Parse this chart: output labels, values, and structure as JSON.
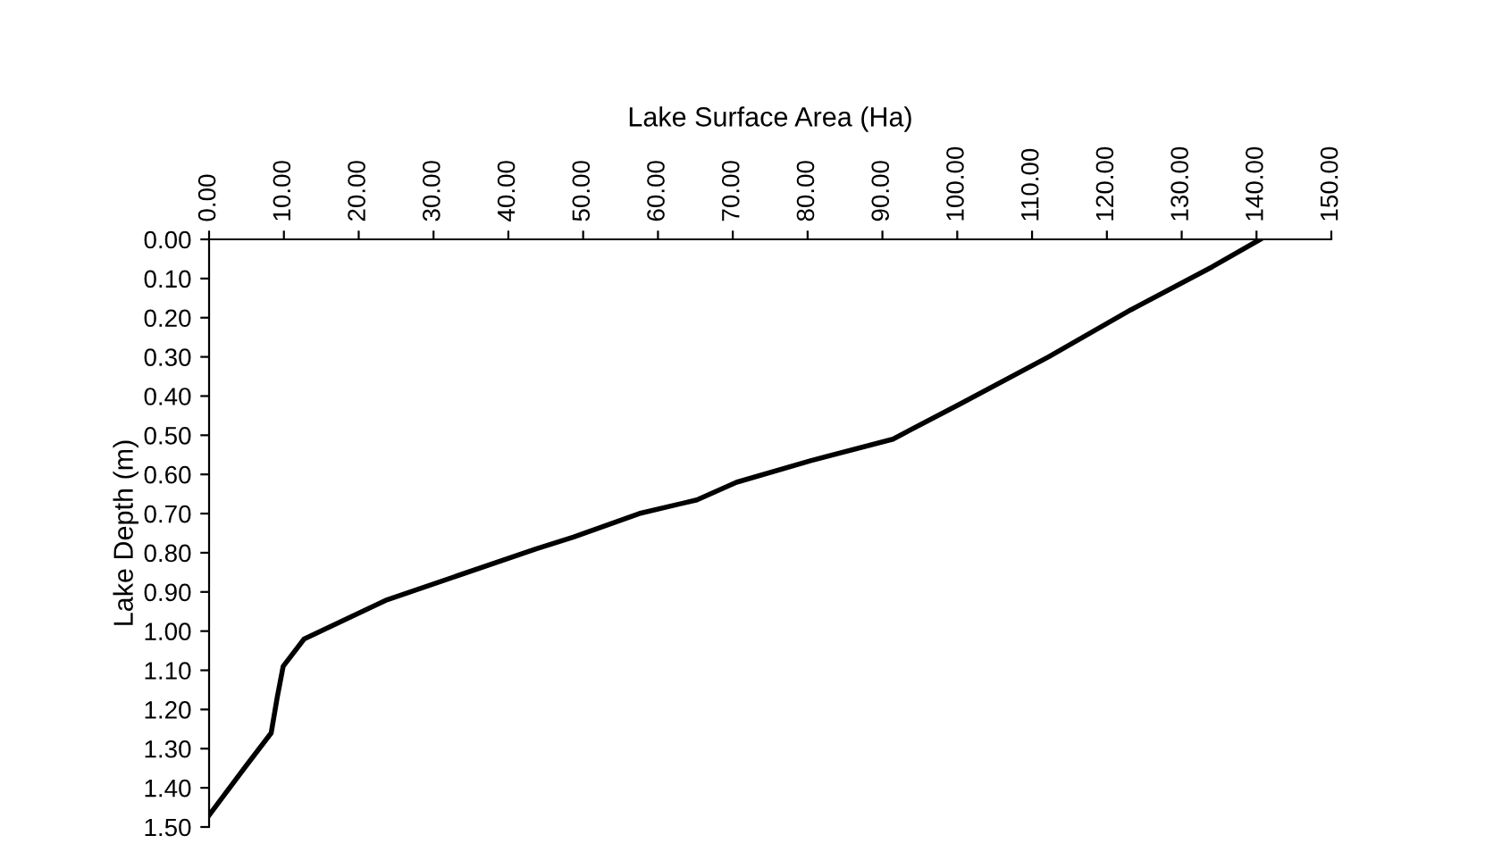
{
  "chart_data": {
    "type": "line",
    "xlabel": "Lake Surface Area (Ha)",
    "ylabel": "Lake Depth (m)",
    "series": [
      {
        "color": "#000000",
        "x": [
          140.5,
          134.1,
          123.2,
          112.2,
          100.4,
          91.4,
          80.4,
          70.5,
          65.2,
          57.5,
          48.7,
          43.7,
          23.8,
          12.7,
          9.9,
          9.1,
          8.3,
          4.7,
          0.0
        ],
        "values": [
          0.0,
          0.07,
          0.18,
          0.3,
          0.42,
          0.51,
          0.565,
          0.62,
          0.665,
          0.7,
          0.76,
          0.79,
          0.92,
          1.02,
          1.09,
          1.17,
          1.26,
          1.35,
          1.47
        ]
      }
    ],
    "xlim": [
      0,
      150
    ],
    "ylim": [
      1.5,
      0
    ],
    "xticks": [
      {
        "value": 0,
        "label": "0.00"
      },
      {
        "value": 10,
        "label": "10.00"
      },
      {
        "value": 20,
        "label": "20.00"
      },
      {
        "value": 30,
        "label": "30.00"
      },
      {
        "value": 40,
        "label": "40.00"
      },
      {
        "value": 50,
        "label": "50.00"
      },
      {
        "value": 60,
        "label": "60.00"
      },
      {
        "value": 70,
        "label": "70.00"
      },
      {
        "value": 80,
        "label": "80.00"
      },
      {
        "value": 90,
        "label": "90.00"
      },
      {
        "value": 100,
        "label": "100.00"
      },
      {
        "value": 110,
        "label": "110.00"
      },
      {
        "value": 120,
        "label": "120.00"
      },
      {
        "value": 130,
        "label": "130.00"
      },
      {
        "value": 140,
        "label": "140.00"
      },
      {
        "value": 150,
        "label": "150.00"
      }
    ],
    "yticks": [
      {
        "value": 0,
        "label": "0.00"
      },
      {
        "value": 0.1,
        "label": "0.10"
      },
      {
        "value": 0.2,
        "label": "0.20"
      },
      {
        "value": 0.3,
        "label": "0.30"
      },
      {
        "value": 0.4,
        "label": "0.40"
      },
      {
        "value": 0.5,
        "label": "0.50"
      },
      {
        "value": 0.6,
        "label": "0.60"
      },
      {
        "value": 0.7,
        "label": "0.70"
      },
      {
        "value": 0.8,
        "label": "0.80"
      },
      {
        "value": 0.9,
        "label": "0.90"
      },
      {
        "value": 1.0,
        "label": "1.00"
      },
      {
        "value": 1.1,
        "label": "1.10"
      },
      {
        "value": 1.2,
        "label": "1.20"
      },
      {
        "value": 1.3,
        "label": "1.30"
      },
      {
        "value": 1.4,
        "label": "1.40"
      },
      {
        "value": 1.5,
        "label": "1.50"
      }
    ],
    "grid": false,
    "marker": "none",
    "line_style": "solid"
  }
}
